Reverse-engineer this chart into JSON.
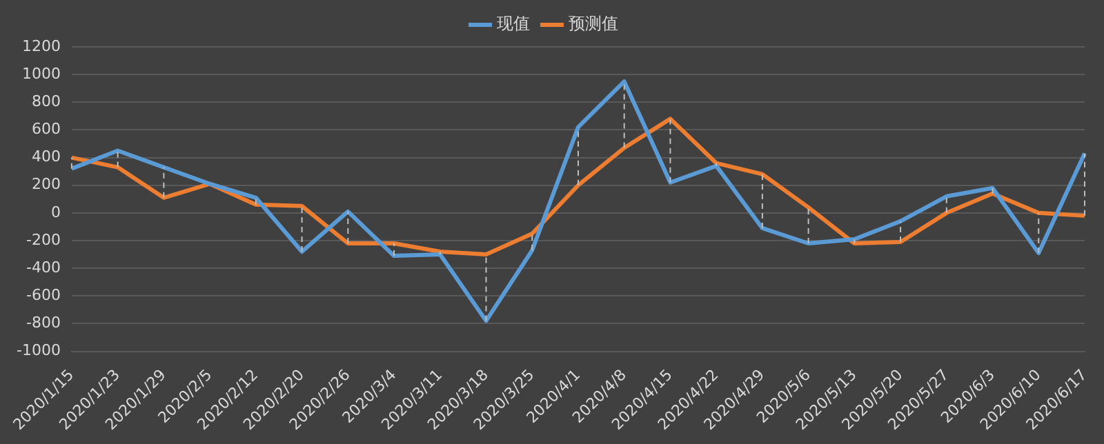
{
  "chart_data": {
    "type": "line",
    "categories": [
      "2020/1/15",
      "2020/1/23",
      "2020/1/29",
      "2020/2/5",
      "2020/2/12",
      "2020/2/20",
      "2020/2/26",
      "2020/3/4",
      "2020/3/11",
      "2020/3/18",
      "2020/3/25",
      "2020/4/1",
      "2020/4/8",
      "2020/4/15",
      "2020/4/22",
      "2020/4/29",
      "2020/5/6",
      "2020/5/13",
      "2020/5/20",
      "2020/5/27",
      "2020/6/3",
      "2020/6/10",
      "2020/6/17"
    ],
    "series": [
      {
        "name": "现值",
        "color": "#5b9bd5",
        "values": [
          320,
          450,
          330,
          210,
          110,
          -280,
          10,
          -310,
          -300,
          -780,
          -270,
          620,
          950,
          220,
          340,
          -110,
          -220,
          -190,
          -60,
          120,
          180,
          -290,
          430
        ],
        "errors": [
          [
            320,
            400
          ],
          [
            330,
            450
          ],
          [
            110,
            330
          ],
          null,
          [
            60,
            110
          ],
          [
            -280,
            50
          ],
          [
            -220,
            10
          ],
          [
            -310,
            -220
          ],
          [
            -300,
            -280
          ],
          [
            -780,
            -300
          ],
          [
            -270,
            -150
          ],
          [
            200,
            620
          ],
          [
            470,
            950
          ],
          [
            220,
            680
          ],
          [
            340,
            360
          ],
          [
            -110,
            280
          ],
          [
            -220,
            40
          ],
          [
            -220,
            -190
          ],
          [
            -210,
            -60
          ],
          [
            0,
            120
          ],
          [
            140,
            180
          ],
          [
            -290,
            0
          ],
          [
            -20,
            430
          ]
        ]
      },
      {
        "name": "预测值",
        "color": "#ed7d31",
        "values": [
          400,
          330,
          110,
          210,
          60,
          50,
          -220,
          -220,
          -280,
          -300,
          -150,
          200,
          470,
          680,
          360,
          280,
          40,
          -220,
          -210,
          0,
          140,
          0,
          -20
        ]
      }
    ],
    "ylim": [
      -1000,
      1200
    ],
    "yticks": [
      -1000,
      -800,
      -600,
      -400,
      -200,
      0,
      200,
      400,
      600,
      800,
      1000,
      1200
    ],
    "grid": "y",
    "legend": "top",
    "marker": "none",
    "line_style": "solid"
  }
}
